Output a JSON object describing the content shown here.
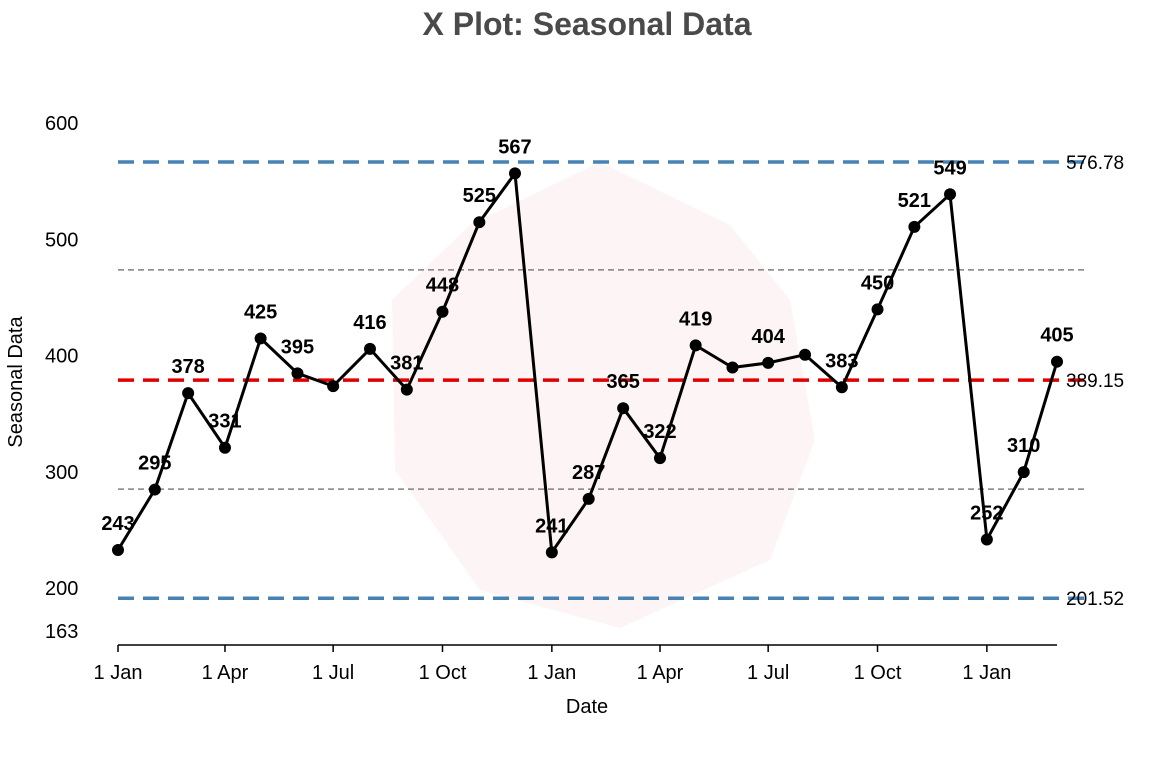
{
  "chart_data": {
    "type": "line",
    "title": "X Plot: Seasonal Data",
    "xlabel": "Date",
    "ylabel": "Seasonal Data",
    "x": [
      "2019-01-01",
      "2019-02-01",
      "2019-03-01",
      "2019-04-01",
      "2019-05-01",
      "2019-06-01",
      "2019-07-01",
      "2019-08-01",
      "2019-09-01",
      "2019-10-01",
      "2019-11-01",
      "2019-12-01",
      "2020-01-01",
      "2020-02-01",
      "2020-03-01",
      "2020-04-01",
      "2020-05-01",
      "2020-06-01",
      "2020-07-01",
      "2020-08-01",
      "2020-09-01",
      "2020-10-01",
      "2020-11-01",
      "2020-12-01",
      "2021-01-01",
      "2021-02-01",
      "2021-03-01"
    ],
    "values": [
      243,
      295,
      378,
      331,
      425,
      395,
      384,
      416,
      381,
      448,
      525,
      567,
      241,
      287,
      365,
      322,
      419,
      400,
      404,
      411,
      383,
      450,
      521,
      549,
      252,
      310,
      405
    ],
    "labels": [
      "243",
      "295",
      "378",
      "331",
      "425",
      "395",
      "",
      "416",
      "381",
      "448",
      "525",
      "567",
      "241",
      "287",
      "365",
      "322",
      "419",
      "",
      "404",
      "",
      "383",
      "450",
      "521",
      "549",
      "252",
      "310",
      "405"
    ],
    "x_ticks": [
      {
        "date": "2019-01-01",
        "label": "1 Jan"
      },
      {
        "date": "2019-04-01",
        "label": "1 Apr"
      },
      {
        "date": "2019-07-01",
        "label": "1 Jul"
      },
      {
        "date": "2019-10-01",
        "label": "1 Oct"
      },
      {
        "date": "2020-01-01",
        "label": "1 Jan"
      },
      {
        "date": "2020-04-01",
        "label": "1 Apr"
      },
      {
        "date": "2020-07-01",
        "label": "1 Jul"
      },
      {
        "date": "2020-10-01",
        "label": "1 Oct"
      },
      {
        "date": "2021-01-01",
        "label": "1 Jan"
      }
    ],
    "y_ticks": [
      {
        "value": 163,
        "label": "163"
      },
      {
        "value": 200,
        "label": "200"
      },
      {
        "value": 300,
        "label": "300"
      },
      {
        "value": 400,
        "label": "400"
      },
      {
        "value": 500,
        "label": "500"
      },
      {
        "value": 600,
        "label": "600"
      }
    ],
    "ylim": [
      163,
      625
    ],
    "reference_lines": [
      {
        "kind": "upper-control-limit",
        "value": 576.78,
        "label": "576.78",
        "color": "#4682b4",
        "style": "dashed"
      },
      {
        "kind": "upper-sigma",
        "value": 483.97,
        "label": "",
        "color": "#808080",
        "style": "dashed-thin"
      },
      {
        "kind": "center-line",
        "value": 389.15,
        "label": "389.15",
        "color": "#e00000",
        "style": "dashed"
      },
      {
        "kind": "lower-sigma",
        "value": 295.34,
        "label": "",
        "color": "#808080",
        "style": "dashed-thin"
      },
      {
        "kind": "lower-control-limit",
        "value": 201.52,
        "label": "201.52",
        "color": "#4682b4",
        "style": "dashed"
      }
    ],
    "grid": false,
    "legend": "none",
    "line_color": "#000000",
    "marker_color": "#000000"
  }
}
